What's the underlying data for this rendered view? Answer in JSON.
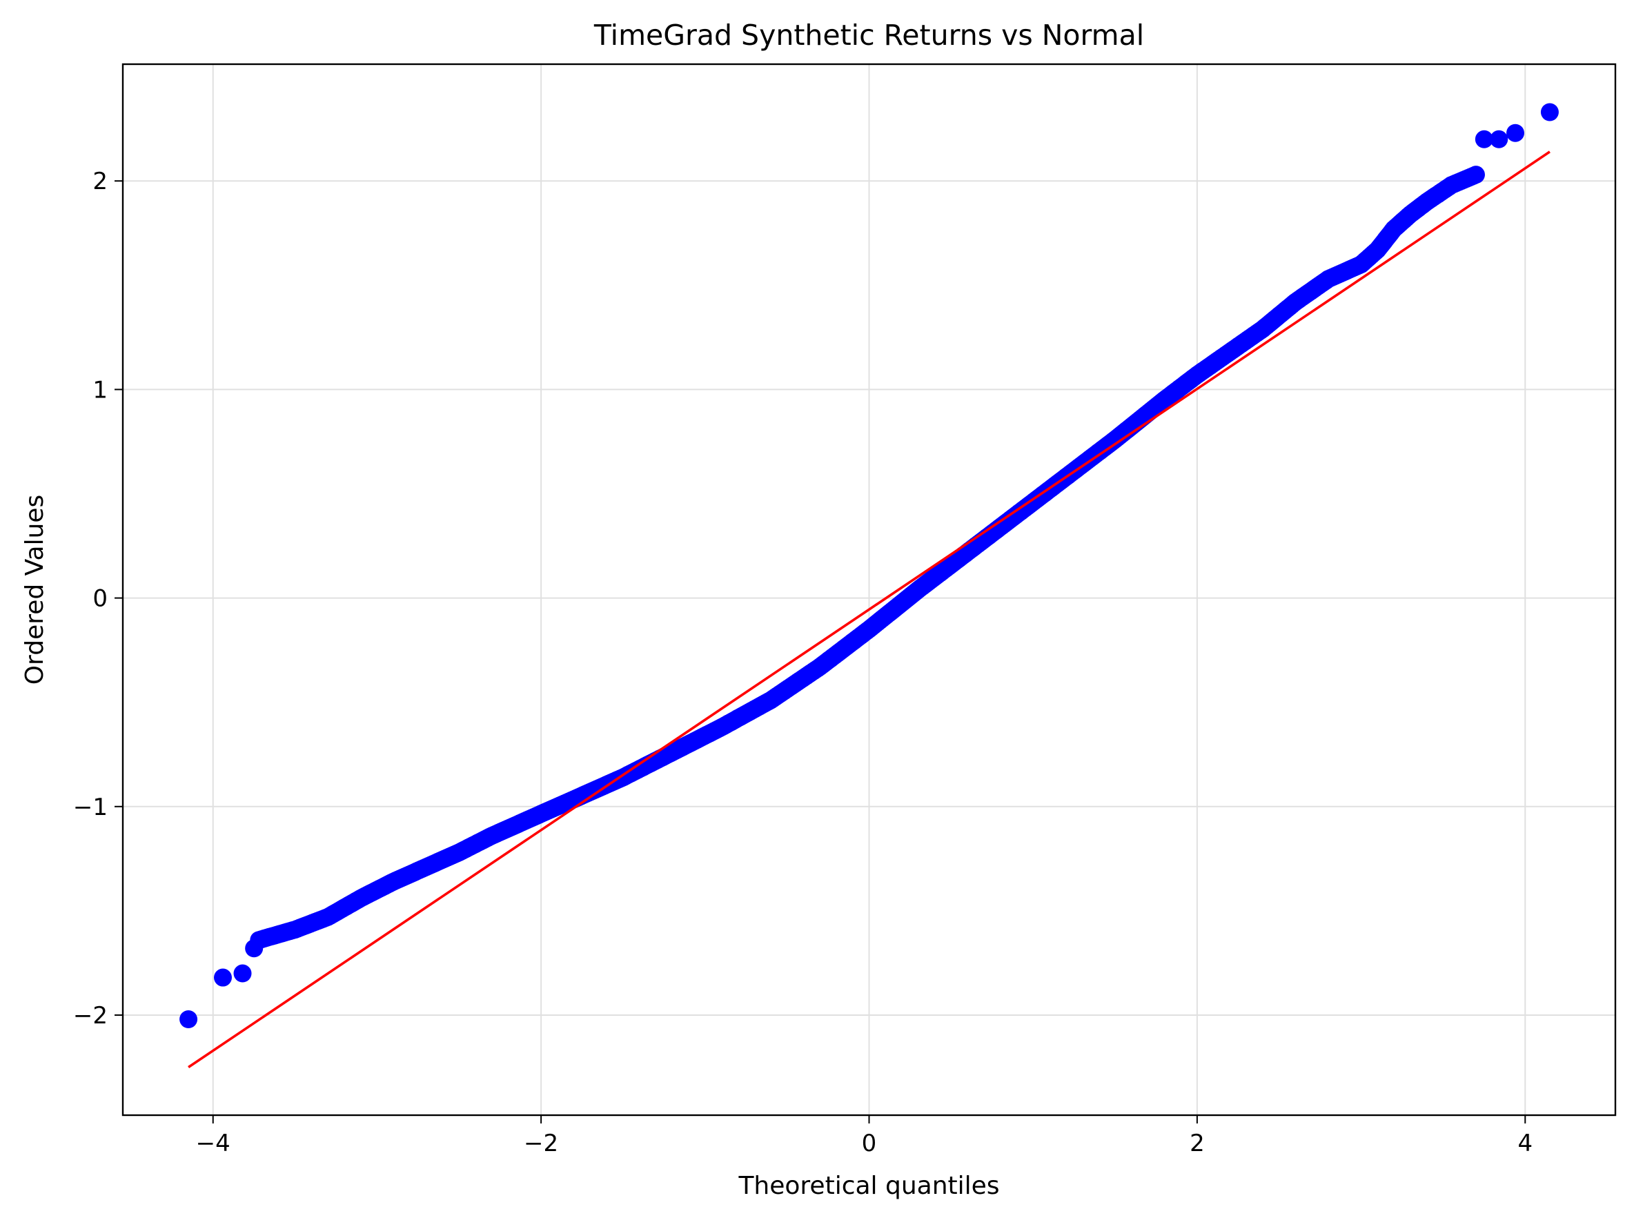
{
  "chart_data": {
    "type": "scatter",
    "title": "TimeGrad Synthetic Returns vs Normal",
    "xlabel": "Theoretical quantiles",
    "ylabel": "Ordered Values",
    "xlim": [
      -4.55,
      4.55
    ],
    "ylim": [
      -2.48,
      2.56
    ],
    "x_ticks": [
      -4,
      -2,
      0,
      2,
      4
    ],
    "x_tick_labels": [
      "−4",
      "−2",
      "0",
      "2",
      "4"
    ],
    "y_ticks": [
      -2,
      -1,
      0,
      1,
      2
    ],
    "y_tick_labels": [
      "−2",
      "−1",
      "0",
      "1",
      "2"
    ],
    "grid": true,
    "legend": "none",
    "colors": {
      "points": "#0000ff",
      "line": "#ff0000",
      "grid": "#e0e0e0"
    },
    "fit_line": {
      "x": [
        -4.15,
        4.15
      ],
      "y": [
        -2.25,
        2.14
      ]
    },
    "isolated_points": {
      "x": [
        -4.15,
        -3.94,
        -3.82,
        -3.75,
        3.75,
        3.84,
        3.94,
        4.15
      ],
      "y": [
        -2.02,
        -1.82,
        -1.8,
        -1.68,
        2.2,
        2.2,
        2.23,
        2.33
      ]
    },
    "bulk_path": {
      "x": [
        -3.72,
        -3.5,
        -3.3,
        -3.1,
        -2.9,
        -2.7,
        -2.5,
        -2.3,
        -2.1,
        -1.9,
        -1.7,
        -1.5,
        -1.2,
        -0.9,
        -0.6,
        -0.3,
        0.0,
        0.3,
        0.6,
        0.9,
        1.2,
        1.5,
        1.8,
        2.0,
        2.2,
        2.4,
        2.6,
        2.8,
        3.0,
        3.1,
        3.2,
        3.3,
        3.4,
        3.55,
        3.7
      ],
      "y": [
        -1.64,
        -1.59,
        -1.53,
        -1.44,
        -1.36,
        -1.29,
        -1.22,
        -1.14,
        -1.07,
        -1.0,
        -0.93,
        -0.86,
        -0.74,
        -0.62,
        -0.49,
        -0.33,
        -0.15,
        0.04,
        0.22,
        0.4,
        0.58,
        0.76,
        0.95,
        1.07,
        1.18,
        1.29,
        1.42,
        1.53,
        1.6,
        1.67,
        1.77,
        1.84,
        1.9,
        1.98,
        2.03
      ]
    }
  }
}
